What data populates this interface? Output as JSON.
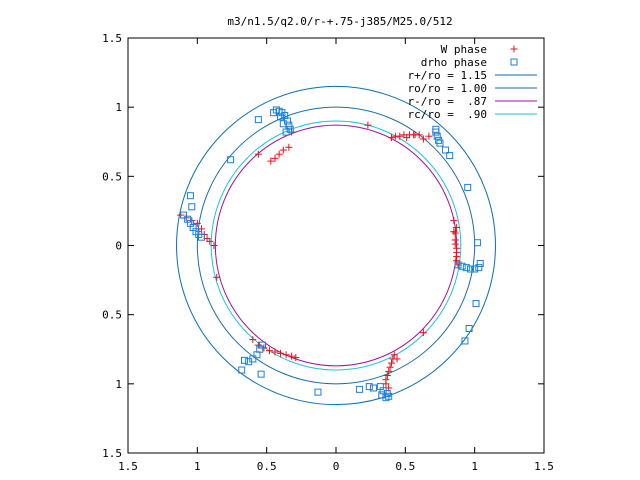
{
  "chart_data": {
    "type": "scatter",
    "title": "m3/n1.5/q2.0/r-+.75-j385/M25.0/512",
    "xlabel": "",
    "ylabel": "",
    "xlim": [
      -1.5,
      1.5
    ],
    "ylim": [
      -1.5,
      1.5
    ],
    "grid": false,
    "legend_position": "top-right",
    "x_ticks": [
      {
        "value": -1.5,
        "label": "1.5"
      },
      {
        "value": -1.0,
        "label": "1"
      },
      {
        "value": -0.5,
        "label": "0.5"
      },
      {
        "value": 0,
        "label": "0"
      },
      {
        "value": 0.5,
        "label": "0.5"
      },
      {
        "value": 1.0,
        "label": "1"
      },
      {
        "value": 1.5,
        "label": "1.5"
      }
    ],
    "y_ticks": [
      {
        "value": 1.5,
        "label": "1.5"
      },
      {
        "value": 1.0,
        "label": "1"
      },
      {
        "value": 0.5,
        "label": "0.5"
      },
      {
        "value": 0,
        "label": "0"
      },
      {
        "value": -0.5,
        "label": "0.5"
      },
      {
        "value": -1.0,
        "label": "1"
      },
      {
        "value": -1.5,
        "label": "1.5"
      }
    ],
    "circles": [
      {
        "name": "r+/ro = 1.15",
        "radius": 1.15,
        "color": "#0b6fb4"
      },
      {
        "name": "ro/ro = 1.00",
        "radius": 1.0,
        "color": "#1a6ea8"
      },
      {
        "name": "r-/ro =  .87",
        "radius": 0.87,
        "color": "#a3119f"
      },
      {
        "name": "rc/ro =  .90",
        "radius": 0.9,
        "color": "#1cc6d3"
      }
    ],
    "series": [
      {
        "name": "W phase",
        "marker": "plus",
        "color": "#e0151b",
        "points": [
          [
            0.63,
            0.77
          ],
          [
            0.6,
            0.8
          ],
          [
            0.57,
            0.8
          ],
          [
            0.53,
            0.8
          ],
          [
            0.49,
            0.8
          ],
          [
            0.46,
            0.79
          ],
          [
            0.43,
            0.79
          ],
          [
            0.4,
            0.78
          ],
          [
            0.67,
            0.79
          ],
          [
            0.56,
            0.8
          ],
          [
            0.51,
            0.78
          ],
          [
            0.23,
            0.87
          ],
          [
            0.86,
            0.04
          ],
          [
            0.86,
            0.01
          ],
          [
            0.87,
            -0.02
          ],
          [
            0.87,
            -0.05
          ],
          [
            0.87,
            -0.08
          ],
          [
            0.87,
            -0.11
          ],
          [
            0.88,
            -0.14
          ],
          [
            0.86,
            0.09
          ],
          [
            0.85,
            0.1
          ],
          [
            0.87,
            0.13
          ],
          [
            0.85,
            0.18
          ],
          [
            0.42,
            -0.79
          ],
          [
            0.41,
            -0.82
          ],
          [
            0.4,
            -0.85
          ],
          [
            0.39,
            -0.88
          ],
          [
            0.38,
            -0.91
          ],
          [
            0.37,
            -0.94
          ],
          [
            0.36,
            -0.97
          ],
          [
            0.36,
            -1.0
          ],
          [
            0.38,
            -1.03
          ],
          [
            0.44,
            -0.82
          ],
          [
            0.63,
            -0.63
          ],
          [
            -0.6,
            -0.68
          ],
          [
            -0.56,
            -0.72
          ],
          [
            -0.52,
            -0.74
          ],
          [
            -0.48,
            -0.76
          ],
          [
            -0.44,
            -0.77
          ],
          [
            -0.4,
            -0.78
          ],
          [
            -0.36,
            -0.79
          ],
          [
            -0.32,
            -0.8
          ],
          [
            -0.29,
            -0.81
          ],
          [
            -1.12,
            0.22
          ],
          [
            -1.08,
            0.2
          ],
          [
            -1.04,
            0.18
          ],
          [
            -1.0,
            0.16
          ],
          [
            -0.97,
            0.12
          ],
          [
            -0.95,
            0.08
          ],
          [
            -0.93,
            0.05
          ],
          [
            -0.91,
            0.03
          ],
          [
            -0.88,
            0.0
          ],
          [
            -0.86,
            -0.23
          ],
          [
            -0.34,
            0.71
          ],
          [
            -0.38,
            0.69
          ],
          [
            -0.41,
            0.66
          ],
          [
            -0.44,
            0.63
          ],
          [
            -0.47,
            0.61
          ],
          [
            -0.56,
            0.66
          ],
          [
            -0.32,
            0.82
          ]
        ]
      },
      {
        "name": "drho phase",
        "marker": "square",
        "color": "#1c7fd9",
        "points": [
          [
            -0.43,
            0.98
          ],
          [
            -0.41,
            0.97
          ],
          [
            -0.39,
            0.96
          ],
          [
            -0.37,
            0.94
          ],
          [
            -0.35,
            0.9
          ],
          [
            -0.34,
            0.87
          ],
          [
            -0.33,
            0.84
          ],
          [
            -0.45,
            0.96
          ],
          [
            -0.4,
            0.93
          ],
          [
            -0.38,
            0.88
          ],
          [
            -0.36,
            0.82
          ],
          [
            0.72,
            0.82
          ],
          [
            0.73,
            0.79
          ],
          [
            0.74,
            0.76
          ],
          [
            0.75,
            0.74
          ],
          [
            0.72,
            0.84
          ],
          [
            0.79,
            0.69
          ],
          [
            -1.1,
            0.22
          ],
          [
            -1.07,
            0.19
          ],
          [
            -1.05,
            0.16
          ],
          [
            -1.03,
            0.13
          ],
          [
            -1.01,
            0.1
          ],
          [
            -0.99,
            0.08
          ],
          [
            -0.97,
            0.06
          ],
          [
            0.88,
            -0.14
          ],
          [
            0.91,
            -0.15
          ],
          [
            0.94,
            -0.16
          ],
          [
            0.97,
            -0.17
          ],
          [
            1.0,
            -0.17
          ],
          [
            1.03,
            -0.16
          ],
          [
            1.04,
            -0.13
          ],
          [
            -0.53,
            -0.72
          ],
          [
            -0.55,
            -0.75
          ],
          [
            -0.57,
            -0.79
          ],
          [
            -0.6,
            -0.82
          ],
          [
            -0.63,
            -0.84
          ],
          [
            -0.66,
            -0.83
          ],
          [
            0.32,
            -1.02
          ],
          [
            0.34,
            -1.05
          ],
          [
            0.37,
            -1.07
          ],
          [
            0.38,
            -1.09
          ],
          [
            0.36,
            -1.1
          ],
          [
            0.33,
            -1.08
          ],
          [
            -0.76,
            0.62
          ],
          [
            -0.56,
            0.91
          ],
          [
            -0.68,
            -0.9
          ],
          [
            -0.54,
            -0.93
          ],
          [
            -1.05,
            0.36
          ],
          [
            -1.04,
            0.28
          ],
          [
            0.95,
            0.42
          ],
          [
            0.82,
            0.65
          ],
          [
            1.02,
            0.02
          ],
          [
            1.01,
            -0.42
          ],
          [
            0.96,
            -0.6
          ],
          [
            0.93,
            -0.69
          ],
          [
            -0.13,
            -1.06
          ],
          [
            0.17,
            -1.04
          ],
          [
            0.24,
            -1.02
          ],
          [
            0.27,
            -1.03
          ]
        ]
      }
    ]
  }
}
